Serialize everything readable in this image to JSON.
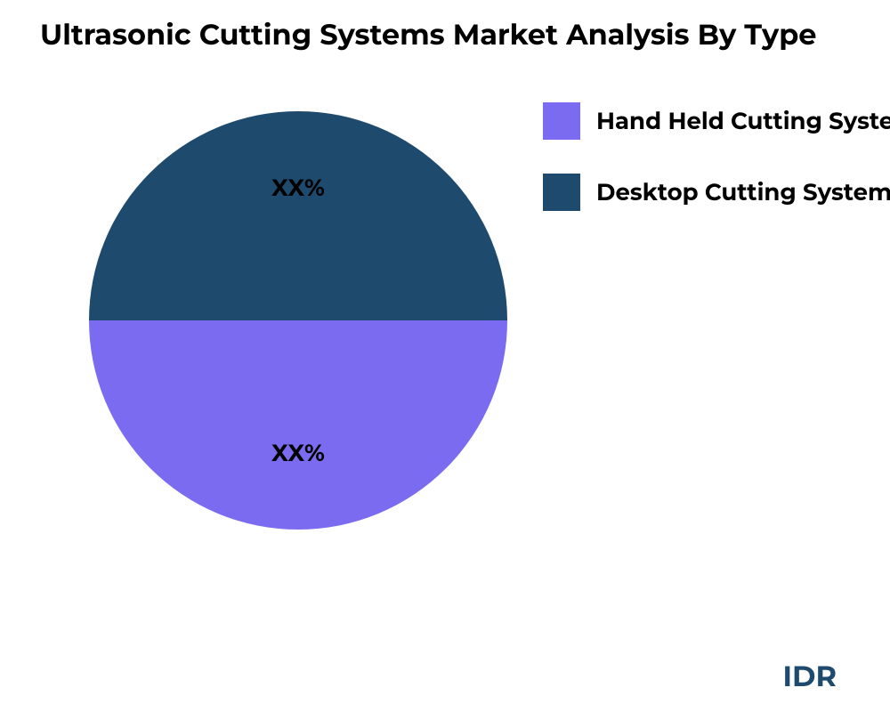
{
  "chart": {
    "type": "pie",
    "title": "Ultrasonic Cutting Systems  Market Analysis By Type",
    "title_fontsize": 32,
    "title_color": "#000000",
    "background_color": "#ffffff",
    "slices": [
      {
        "label": "Desktop Cutting Systems",
        "value": 50,
        "display_label": "XX%",
        "color": "#1e4a6d",
        "label_color": "#000000"
      },
      {
        "label": "Hand Held Cutting Systems",
        "value": 50,
        "display_label": "XX%",
        "color": "#7b6bf0",
        "label_color": "#000000"
      }
    ],
    "legend": {
      "position": "right",
      "items": [
        {
          "label": "Hand Held Cutting Systems",
          "color": "#7b6bf0"
        },
        {
          "label": "Desktop Cutting Systems",
          "color": "#1e4a6d"
        }
      ],
      "fontsize": 26,
      "swatch_size": 42
    },
    "slice_label_fontsize": 26,
    "pie_diameter": 470
  },
  "footer": {
    "brand": "IDR",
    "brand_color": "#1e4a6d",
    "brand_fontsize": 32
  }
}
